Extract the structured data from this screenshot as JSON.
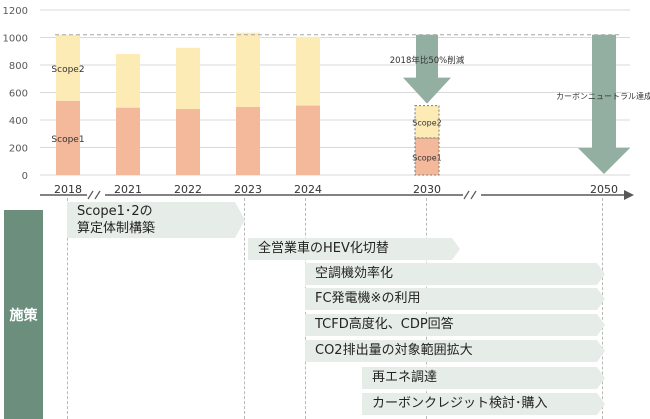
{
  "chart_data": {
    "type": "bar",
    "stacked": true,
    "categories": [
      "2018",
      "2021",
      "2022",
      "2023",
      "2024",
      "2030",
      "2050"
    ],
    "ylim": [
      0,
      1200
    ],
    "yticks": [
      0,
      200,
      400,
      600,
      800,
      1000,
      1200
    ],
    "grid": true,
    "series": [
      {
        "name": "Scope1",
        "values": [
          540,
          490,
          480,
          495,
          505,
          270,
          null
        ]
      },
      {
        "name": "Scope2",
        "values": [
          480,
          390,
          445,
          540,
          500,
          235,
          null
        ]
      }
    ],
    "reference_line": 1020,
    "segment_labels": {
      "scope1": "Scope1",
      "scope2": "Scope2"
    },
    "annotations": [
      {
        "text": "2018年比50%削減",
        "near": "2030"
      },
      {
        "text": "カーボンニュートラル達成",
        "near": "2050"
      }
    ],
    "colors": {
      "scope1": "#f4b89a",
      "scope2": "#fdebb6",
      "arrow": "#93afa1",
      "grid": "#d9d9d9",
      "axis": "#595959"
    }
  },
  "measures": {
    "side_label": "施策",
    "items": [
      "Scope1･2の\n算定体制構築",
      "全営業車のHEV化切替",
      "空調機効率化",
      "FC発電機※の利用",
      "TCFD高度化、CDP回答",
      "CO2排出量の対象範囲拡大",
      "再エネ調達",
      "カーボンクレジット検討･購入"
    ]
  }
}
